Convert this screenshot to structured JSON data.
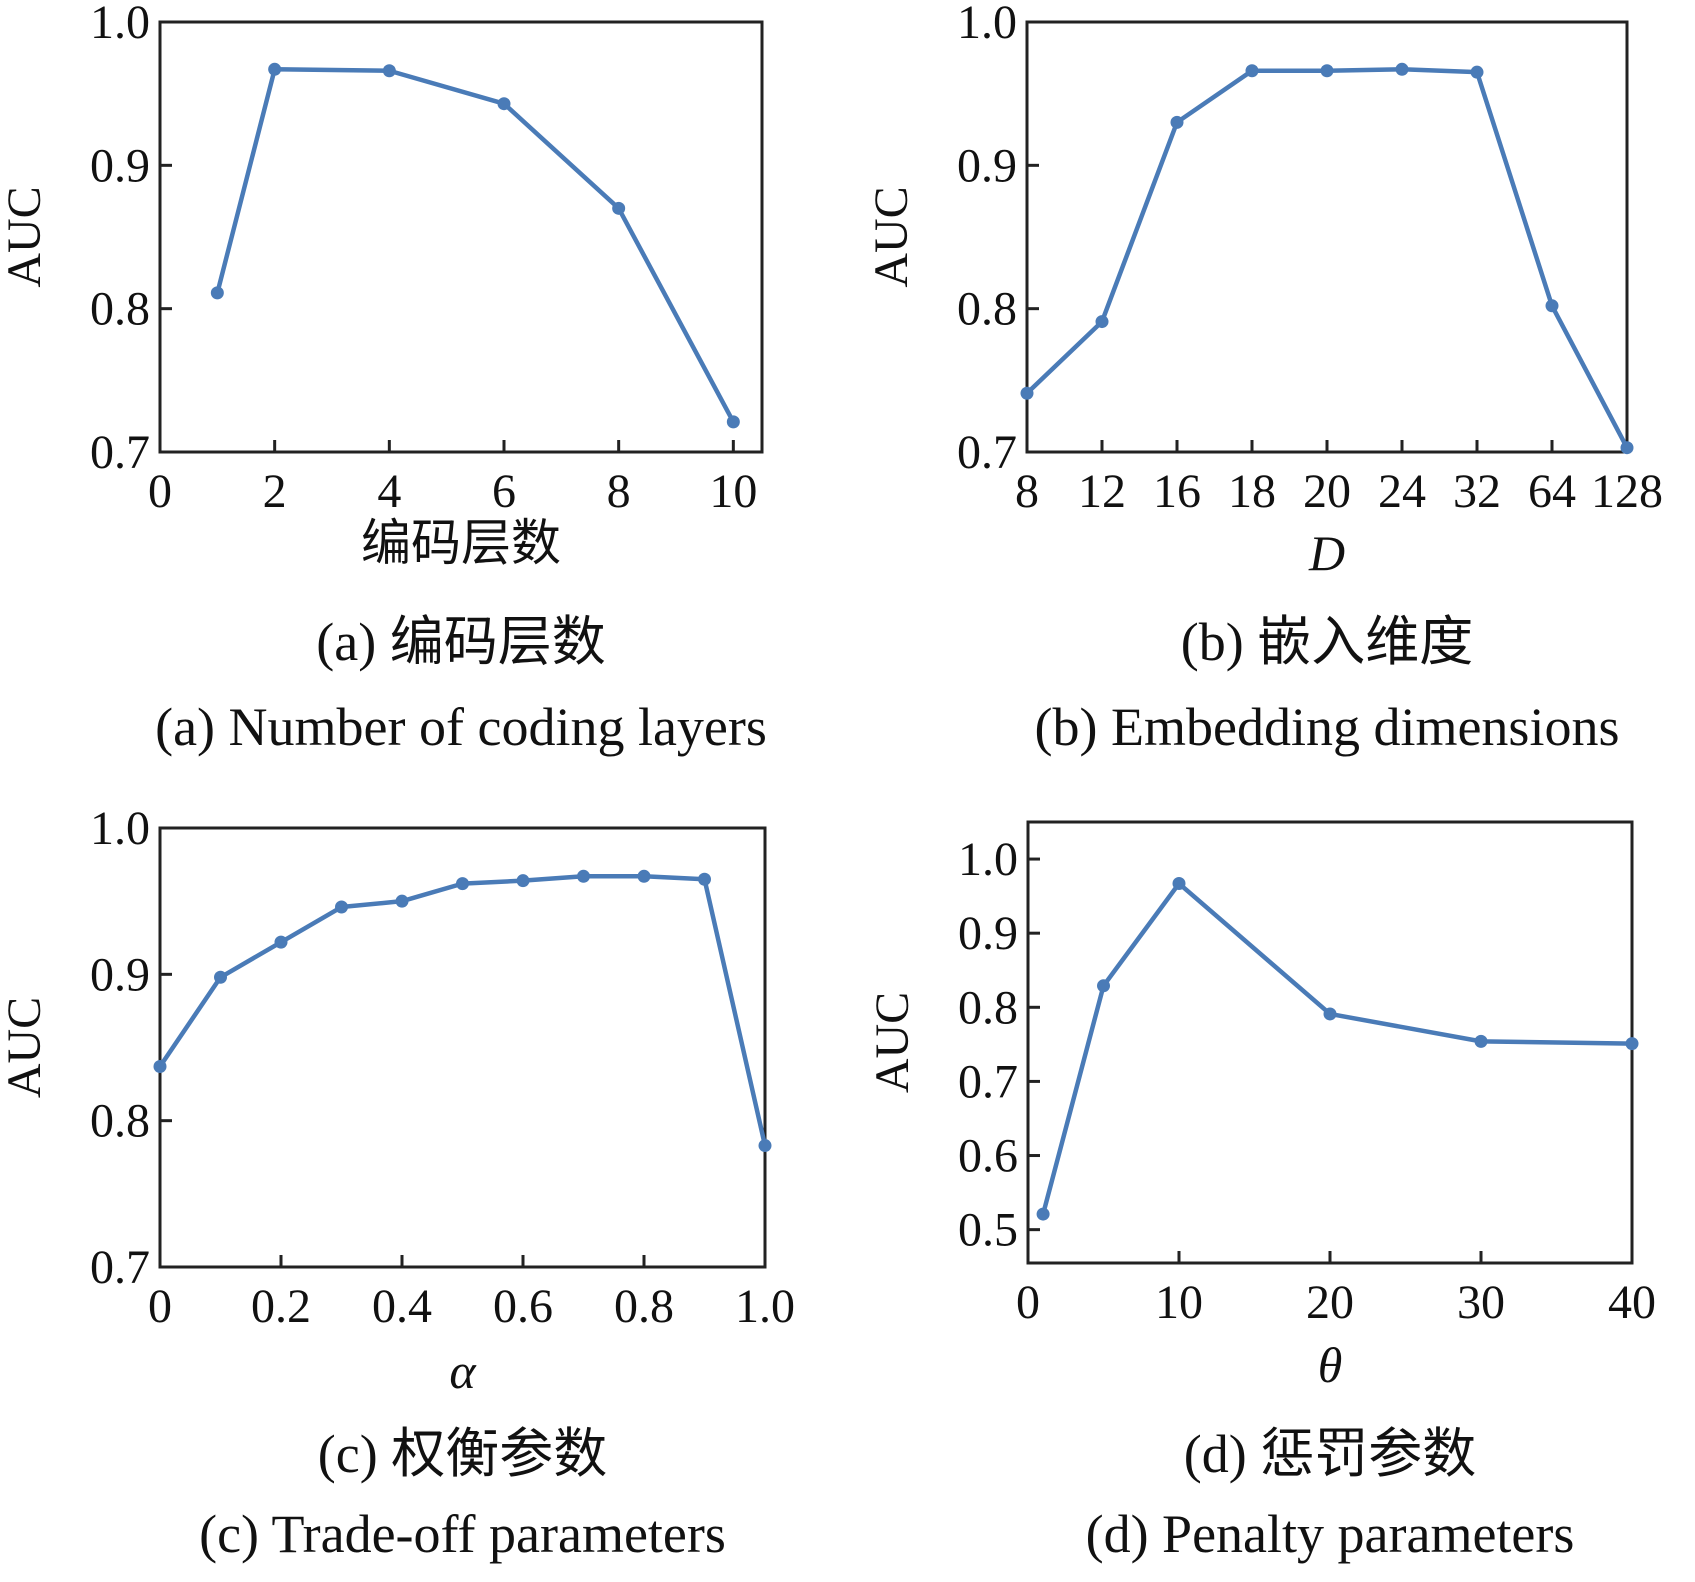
{
  "colors": {
    "series": "#4a7bb7",
    "axis": "#222222"
  },
  "chart_data": [
    {
      "type": "line",
      "panel": "a",
      "title": "",
      "xlabel": "编码层数",
      "ylabel": "AUC",
      "xlim": [
        0,
        10.5
      ],
      "ylim": [
        0.7,
        1.0
      ],
      "xticks": [
        0,
        2,
        4,
        6,
        8,
        10
      ],
      "xtick_labels": [
        "0",
        "2",
        "4",
        "6",
        "8",
        "10"
      ],
      "yticks": [
        0.7,
        0.8,
        0.9,
        1.0
      ],
      "ytick_labels": [
        "0.7",
        "0.8",
        "0.9",
        "1.0"
      ],
      "x": [
        1,
        2,
        4,
        6,
        8,
        10
      ],
      "series": [
        {
          "values": [
            0.811,
            0.967,
            0.966,
            0.943,
            0.87,
            0.721
          ]
        }
      ],
      "caption_zh": "(a)  编码层数",
      "caption_en": "(a)  Number of coding layers"
    },
    {
      "type": "line",
      "panel": "b",
      "title": "",
      "xlabel": "D",
      "xlabel_italic": true,
      "ylabel": "AUC",
      "x_categorical": true,
      "categories": [
        "8",
        "12",
        "16",
        "18",
        "20",
        "24",
        "32",
        "64",
        "128"
      ],
      "ylim": [
        0.7,
        1.0
      ],
      "yticks": [
        0.7,
        0.8,
        0.9,
        1.0
      ],
      "ytick_labels": [
        "0.7",
        "0.8",
        "0.9",
        "1.0"
      ],
      "series": [
        {
          "values": [
            0.741,
            0.791,
            0.93,
            0.966,
            0.966,
            0.967,
            0.965,
            0.802,
            0.703
          ]
        }
      ],
      "caption_zh": "(b)  嵌入维度",
      "caption_en": "(b)  Embedding dimensions"
    },
    {
      "type": "line",
      "panel": "c",
      "title": "",
      "xlabel": "α",
      "xlabel_italic": true,
      "ylabel": "AUC",
      "xlim": [
        0,
        1.0
      ],
      "ylim": [
        0.7,
        1.0
      ],
      "xticks": [
        0,
        0.2,
        0.4,
        0.6,
        0.8,
        1.0
      ],
      "xtick_labels": [
        "0",
        "0.2",
        "0.4",
        "0.6",
        "0.8",
        "1.0"
      ],
      "yticks": [
        0.7,
        0.8,
        0.9,
        1.0
      ],
      "ytick_labels": [
        "0.7",
        "0.8",
        "0.9",
        "1.0"
      ],
      "x": [
        0,
        0.1,
        0.2,
        0.3,
        0.4,
        0.5,
        0.6,
        0.7,
        0.8,
        0.9,
        1.0
      ],
      "series": [
        {
          "values": [
            0.837,
            0.898,
            0.922,
            0.946,
            0.95,
            0.962,
            0.964,
            0.967,
            0.967,
            0.965,
            0.783
          ]
        }
      ],
      "caption_zh": "(c)  权衡参数",
      "caption_en": "(c)  Trade-off parameters"
    },
    {
      "type": "line",
      "panel": "d",
      "title": "",
      "xlabel": "θ",
      "xlabel_italic": true,
      "ylabel": "AUC",
      "xlim": [
        0,
        40
      ],
      "ylim": [
        0.455,
        1.05
      ],
      "xticks": [
        0,
        10,
        20,
        30,
        40
      ],
      "xtick_labels": [
        "0",
        "10",
        "20",
        "30",
        "40"
      ],
      "yticks": [
        0.5,
        0.6,
        0.7,
        0.8,
        0.9,
        1.0
      ],
      "ytick_labels": [
        "0.5",
        "0.6",
        "0.7",
        "0.8",
        "0.9",
        "1.0"
      ],
      "x": [
        1,
        5,
        10,
        20,
        30,
        40
      ],
      "series": [
        {
          "values": [
            0.521,
            0.829,
            0.967,
            0.791,
            0.754,
            0.751
          ]
        }
      ],
      "caption_zh": "(d)  惩罚参数",
      "caption_en": "(d)  Penalty parameters"
    }
  ]
}
